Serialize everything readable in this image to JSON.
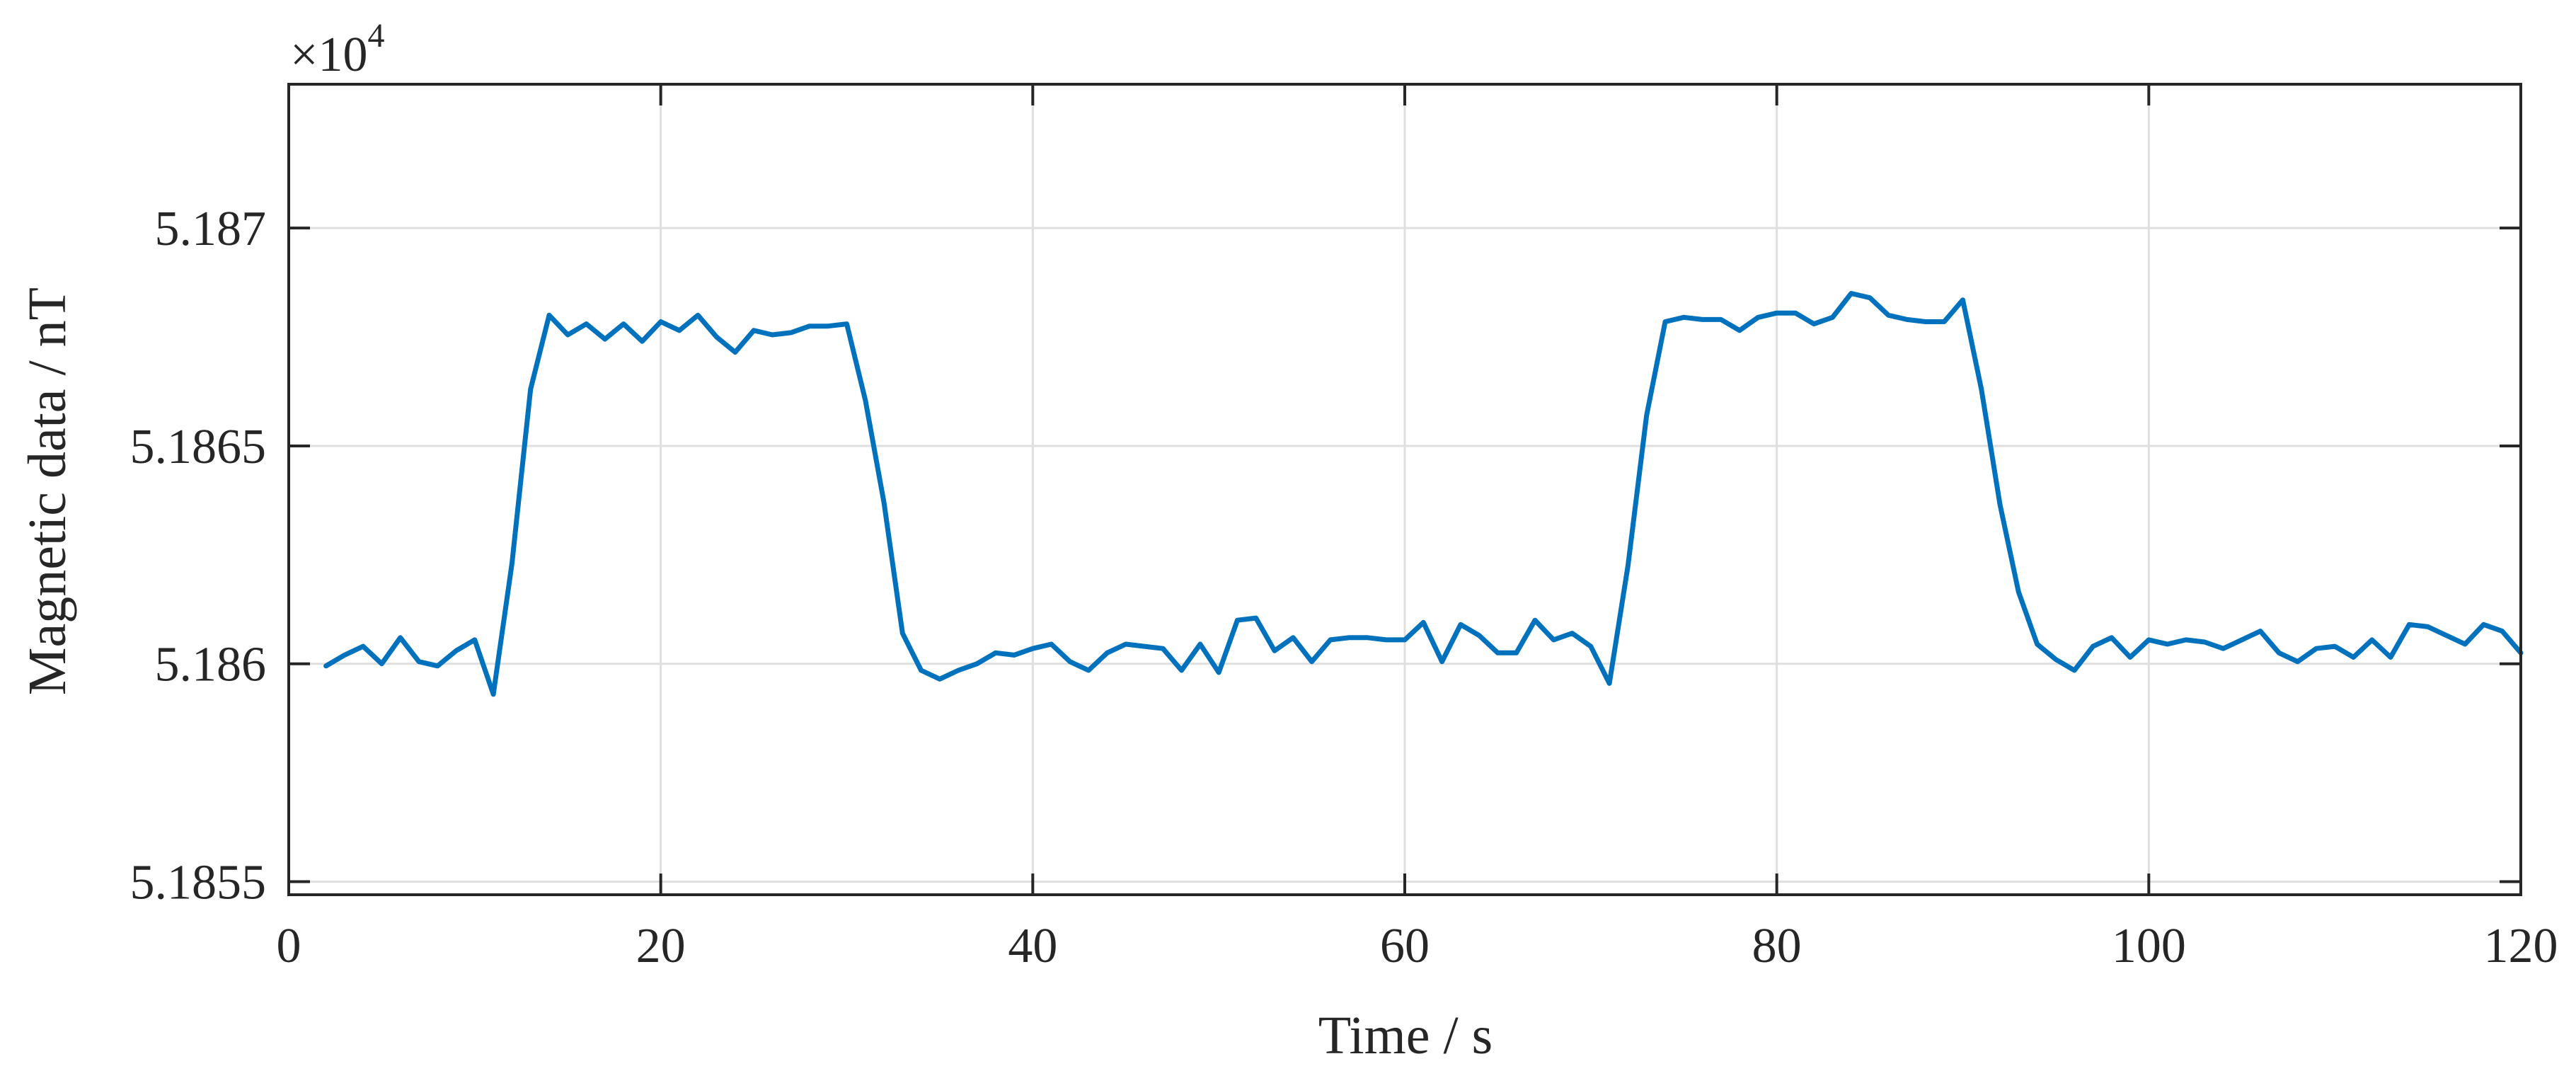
{
  "chart_data": {
    "type": "line",
    "title": "",
    "xlabel": "Time / s",
    "ylabel": "Magnetic data / nT",
    "xlim": [
      0,
      120
    ],
    "ylim": [
      51854.7,
      51873.3
    ],
    "x_ticks": [
      0,
      20,
      40,
      60,
      80,
      100,
      120
    ],
    "x_tick_labels": [
      "0",
      "20",
      "40",
      "60",
      "80",
      "100",
      "120"
    ],
    "y_ticks": [
      51855,
      51860,
      51865,
      51870
    ],
    "y_tick_labels": [
      "5.1855",
      "5.186",
      "5.1865",
      "5.187"
    ],
    "y_multiplier_base": "×10",
    "y_multiplier_exponent": "4",
    "grid": true,
    "line_color": "#0072BD",
    "axis_color": "#262626",
    "grid_color": "#DFDFDF",
    "series": [
      {
        "x": [
          2,
          3,
          4,
          5,
          6,
          7,
          8,
          9,
          10,
          11,
          12,
          13,
          14,
          15,
          16,
          17,
          18,
          19,
          20,
          21,
          22,
          23,
          24,
          25,
          26,
          27,
          28,
          29,
          30,
          31,
          32,
          33,
          34,
          35,
          36,
          37,
          38,
          39,
          40,
          41,
          42,
          43,
          44,
          45,
          46,
          47,
          48,
          49,
          50,
          51,
          52,
          53,
          54,
          55,
          56,
          57,
          58,
          59,
          60,
          61,
          62,
          63,
          64,
          65,
          66,
          67,
          68,
          69,
          70,
          71,
          72,
          73,
          74,
          75,
          76,
          77,
          78,
          79,
          80,
          81,
          82,
          83,
          84,
          85,
          86,
          87,
          88,
          89,
          90,
          91,
          92,
          93,
          94,
          95,
          96,
          97,
          98,
          99,
          100,
          101,
          102,
          103,
          104,
          105,
          106,
          107,
          108,
          109,
          110,
          111,
          112,
          113,
          114,
          115,
          116,
          117,
          118,
          119,
          120
        ],
        "values": [
          51859.95,
          51860.2,
          51860.4,
          51860.0,
          51860.6,
          51860.05,
          51859.95,
          51860.3,
          51860.55,
          51859.3,
          51862.3,
          51866.3,
          51868.0,
          51867.55,
          51867.8,
          51867.45,
          51867.8,
          51867.4,
          51867.85,
          51867.65,
          51868.0,
          51867.5,
          51867.15,
          51867.65,
          51867.55,
          51867.6,
          51867.75,
          51867.75,
          51867.8,
          51866.05,
          51863.7,
          51860.7,
          51859.85,
          51859.65,
          51859.85,
          51860.0,
          51860.25,
          51860.2,
          51860.35,
          51860.45,
          51860.05,
          51859.85,
          51860.25,
          51860.45,
          51860.4,
          51860.35,
          51859.85,
          51860.45,
          51859.8,
          51861.0,
          51861.05,
          51860.3,
          51860.6,
          51860.05,
          51860.55,
          51860.6,
          51860.6,
          51860.55,
          51860.55,
          51860.95,
          51860.05,
          51860.9,
          51860.65,
          51860.25,
          51860.25,
          51861.0,
          51860.55,
          51860.7,
          51860.4,
          51859.55,
          51862.25,
          51865.7,
          51867.85,
          51867.95,
          51867.9,
          51867.9,
          51867.65,
          51867.95,
          51868.05,
          51868.05,
          51867.8,
          51867.95,
          51868.5,
          51868.4,
          51868.0,
          51867.9,
          51867.85,
          51867.85,
          51868.35,
          51866.3,
          51863.65,
          51861.65,
          51860.45,
          51860.1,
          51859.85,
          51860.4,
          51860.6,
          51860.15,
          51860.55,
          51860.45,
          51860.55,
          51860.5,
          51860.35,
          51860.55,
          51860.75,
          51860.25,
          51860.05,
          51860.35,
          51860.4,
          51860.15,
          51860.55,
          51860.15,
          51860.9,
          51860.85,
          51860.65,
          51860.45,
          51860.9,
          51860.75,
          51860.25
        ]
      }
    ]
  }
}
